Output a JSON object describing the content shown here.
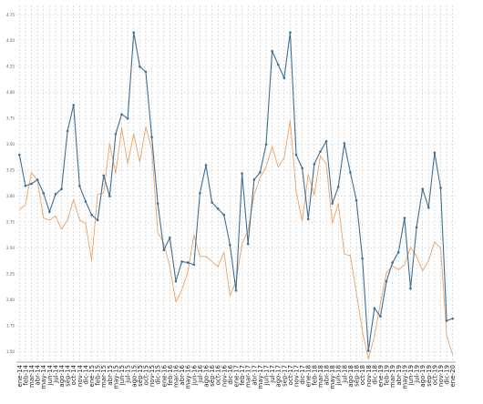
{
  "chart_data": {
    "type": "line",
    "title": "",
    "xlabel": "",
    "ylabel": "",
    "y_tick_labels": [
      "1.50",
      "1.75",
      "2.00",
      "2.25",
      "2.50",
      "2.75",
      "3.00",
      "3.25",
      "3.50",
      "3.75",
      "4.00",
      "4.25",
      "4.50",
      "4.75"
    ],
    "ylim": [
      1.4,
      4.84
    ],
    "grid": {
      "vertical": true,
      "horizontal": true,
      "style": "dashed"
    },
    "legend": "none",
    "categories": [
      "ene-14",
      "feb-14",
      "mar-14",
      "abr-14",
      "may-14",
      "jun-14",
      "jul-14",
      "ago-14",
      "sep-14",
      "oct-14",
      "nov-14",
      "dic-14",
      "ene-15",
      "feb-15",
      "mar-15",
      "abr-15",
      "may-15",
      "jun-15",
      "jul-15",
      "ago-15",
      "sep-15",
      "oct-15",
      "nov-15",
      "dic-15",
      "ene-16",
      "feb-16",
      "mar-16",
      "abr-16",
      "may-16",
      "jun-16",
      "jul-16",
      "ago-16",
      "sep-16",
      "oct-16",
      "nov-16",
      "dic-16",
      "ene-17",
      "feb-17",
      "mar-17",
      "abr-17",
      "may-17",
      "jun-17",
      "jul-17",
      "ago-17",
      "sep-17",
      "oct-17",
      "nov-17",
      "dic-17",
      "ene-18",
      "feb-18",
      "mar-18",
      "abr-18",
      "may-18",
      "jun-18",
      "jul-18",
      "ago-18",
      "sep-18",
      "oct-18",
      "nov-18",
      "dic-18",
      "ene-19",
      "feb-19",
      "mar-19",
      "abr-19",
      "may-19",
      "jun-19",
      "jul-19",
      "ago-19",
      "sep-19",
      "oct-19",
      "nov-19",
      "dic-19",
      "ene-20"
    ],
    "series": [
      {
        "color": "#3d6f96",
        "markers": true,
        "values": [
          3.4,
          3.1,
          3.12,
          3.16,
          3.03,
          2.85,
          3.02,
          3.07,
          3.63,
          3.88,
          3.1,
          2.95,
          2.82,
          2.77,
          3.2,
          3.0,
          3.6,
          3.79,
          3.75,
          4.58,
          4.25,
          4.2,
          3.57,
          2.93,
          2.48,
          2.6,
          2.18,
          2.37,
          2.36,
          2.34,
          3.03,
          3.3,
          2.94,
          2.88,
          2.82,
          2.53,
          2.09,
          3.22,
          2.54,
          3.16,
          3.23,
          3.5,
          4.4,
          4.27,
          4.14,
          4.58,
          3.4,
          3.27,
          2.78,
          3.31,
          3.43,
          3.53,
          2.93,
          3.09,
          3.51,
          3.23,
          2.96,
          2.4,
          1.51,
          1.92,
          1.84,
          2.18,
          2.36,
          2.46,
          2.79,
          2.11,
          2.7,
          3.07,
          2.89,
          3.42,
          3.08,
          1.8,
          1.82
        ]
      },
      {
        "color": "#f0a060",
        "markers": false,
        "values": [
          2.87,
          2.92,
          3.23,
          3.15,
          2.79,
          2.77,
          2.81,
          2.68,
          2.77,
          2.97,
          2.77,
          2.74,
          2.38,
          3.02,
          3.03,
          3.51,
          3.22,
          3.66,
          3.31,
          3.6,
          3.33,
          3.67,
          3.45,
          2.65,
          2.55,
          2.32,
          1.98,
          2.1,
          2.27,
          2.63,
          2.42,
          2.42,
          2.37,
          2.32,
          2.46,
          2.04,
          2.18,
          2.54,
          2.67,
          3.01,
          3.18,
          3.28,
          3.48,
          3.28,
          3.37,
          3.73,
          3.04,
          2.76,
          3.21,
          3.01,
          3.39,
          3.31,
          2.74,
          2.93,
          2.44,
          2.43,
          2.07,
          1.7,
          1.43,
          1.65,
          1.97,
          2.26,
          2.33,
          2.29,
          2.34,
          2.51,
          2.42,
          2.28,
          2.38,
          2.56,
          2.5,
          1.66,
          1.47
        ]
      }
    ]
  }
}
